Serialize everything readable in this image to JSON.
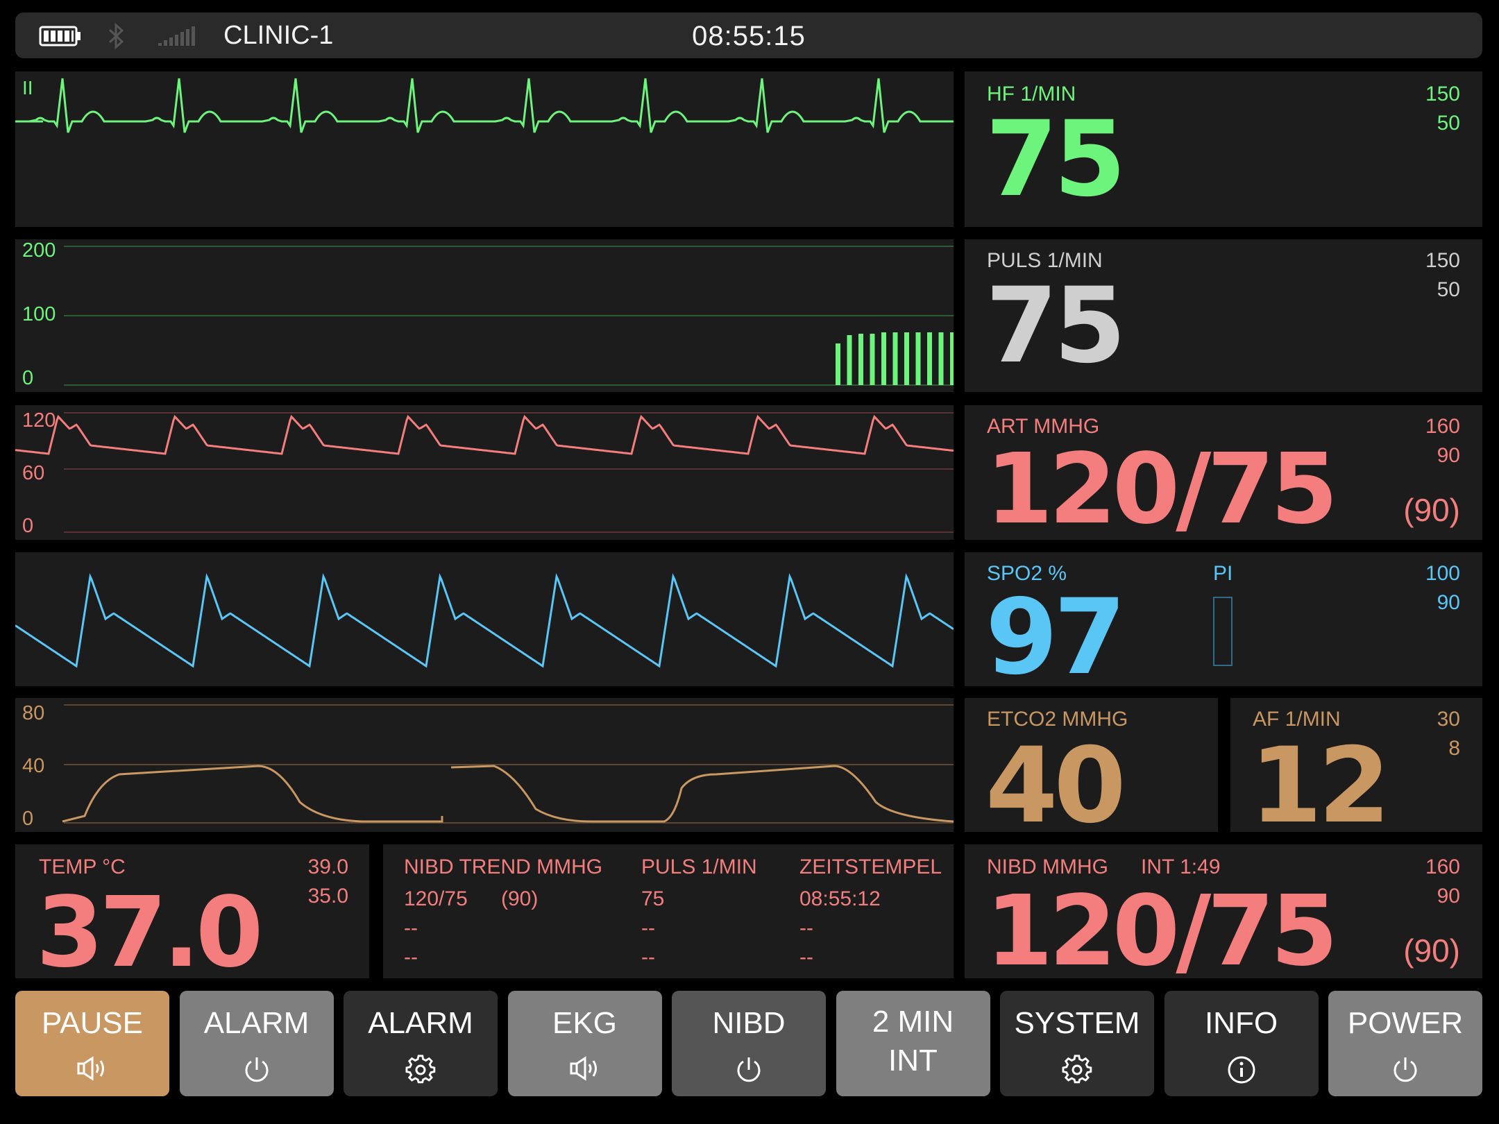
{
  "status_bar": {
    "device_name": "CLINIC-1",
    "time": "08:55:15"
  },
  "waveforms": {
    "ecg": {
      "lead": "II"
    },
    "pleth_bars": {
      "scale": [
        "200",
        "100",
        "0"
      ]
    },
    "art": {
      "scale": [
        "120",
        "60",
        "0"
      ]
    },
    "co2": {
      "scale": [
        "80",
        "40",
        "0"
      ]
    }
  },
  "parameters": {
    "hf": {
      "label": "HF  1/MIN",
      "value": "75",
      "limit_high": "150",
      "limit_low": "50",
      "color": "#6cf47c"
    },
    "puls": {
      "label": "PULS  1/MIN",
      "value": "75",
      "limit_high": "150",
      "limit_low": "50",
      "color": "#cfcfcf"
    },
    "art": {
      "label": "ART  MMHG",
      "value": "120/75",
      "mean": "(90)",
      "limit_high": "160",
      "limit_low": "90",
      "color": "#f47e7e"
    },
    "spo2": {
      "label": "SPO2  %",
      "value": "97",
      "pi_label": "PI",
      "limit_high": "100",
      "limit_low": "90",
      "color": "#5ac6f6"
    },
    "etco2": {
      "label": "ETCO2  MMHG",
      "value": "40",
      "color": "#c99762"
    },
    "af": {
      "label": "AF  1/MIN",
      "value": "12",
      "limit_high": "30",
      "limit_low": "8",
      "color": "#c99762"
    },
    "temp": {
      "label": "TEMP  °C",
      "value": "37.0",
      "limit_high": "39.0",
      "limit_low": "35.0",
      "color": "#f47e7e"
    },
    "nibd": {
      "label": "NIBD  MMHG",
      "interval": "INT 1:49",
      "value": "120/75",
      "mean": "(90)",
      "limit_high": "160",
      "limit_low": "90",
      "color": "#f47e7e"
    }
  },
  "nibd_trend": {
    "headers": {
      "trend": "NIBD TREND  MMHG",
      "puls": "PULS  1/MIN",
      "time": "ZEITSTEMPEL"
    },
    "rows": [
      {
        "bp": "120/75",
        "mean": "(90)",
        "puls": "75",
        "time": "08:55:12"
      },
      {
        "bp": "--",
        "mean": "",
        "puls": "--",
        "time": "--"
      },
      {
        "bp": "--",
        "mean": "",
        "puls": "--",
        "time": "--"
      }
    ]
  },
  "buttons": [
    {
      "line1": "PAUSE",
      "line2": "",
      "icon": "speaker-icon",
      "bg": "#c99762"
    },
    {
      "line1": "ALARM",
      "line2": "",
      "icon": "power-icon",
      "bg": "#7f7f7f"
    },
    {
      "line1": "ALARM",
      "line2": "",
      "icon": "gear-icon",
      "bg": "#2e2e2e"
    },
    {
      "line1": "EKG",
      "line2": "",
      "icon": "speaker-icon",
      "bg": "#7f7f7f"
    },
    {
      "line1": "NIBD",
      "line2": "",
      "icon": "power-icon",
      "bg": "#555555"
    },
    {
      "line1": "2 MIN",
      "line2": "INT",
      "icon": "",
      "bg": "#7f7f7f"
    },
    {
      "line1": "SYSTEM",
      "line2": "",
      "icon": "gear-icon",
      "bg": "#2e2e2e"
    },
    {
      "line1": "INFO",
      "line2": "",
      "icon": "info-icon",
      "bg": "#2e2e2e"
    },
    {
      "line1": "POWER",
      "line2": "",
      "icon": "power-icon",
      "bg": "#7f7f7f"
    }
  ]
}
